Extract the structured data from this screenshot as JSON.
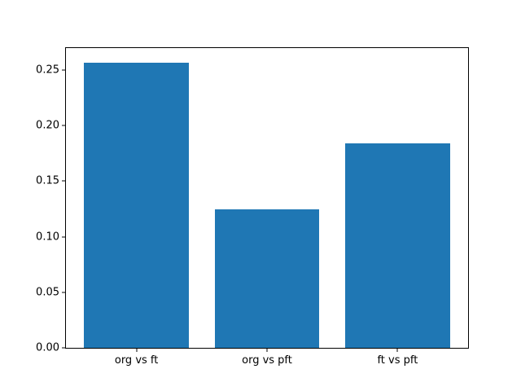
{
  "chart_data": {
    "type": "bar",
    "title": "",
    "xlabel": "",
    "ylabel": "",
    "categories": [
      "org vs ft",
      "org vs pft",
      "ft vs pft"
    ],
    "values": [
      0.257,
      0.125,
      0.184
    ],
    "bar_color": "#1f77b4",
    "ytick_labels": [
      "0.00",
      "0.05",
      "0.10",
      "0.15",
      "0.20",
      "0.25"
    ],
    "ytick_values": [
      0.0,
      0.05,
      0.1,
      0.15,
      0.2,
      0.25
    ],
    "ylim": [
      0,
      0.2699
    ],
    "xlim": [
      -0.54,
      2.54
    ],
    "bar_width": 0.8,
    "grid": false,
    "legend": null,
    "background_color": "#ffffff",
    "spine_color": "#000000"
  }
}
